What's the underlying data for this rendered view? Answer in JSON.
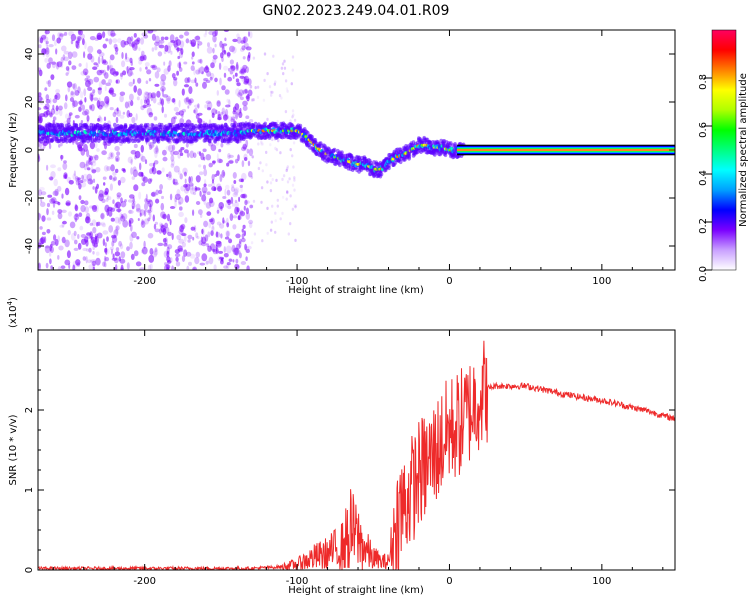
{
  "title": "GN02.2023.249.04.01.R09",
  "chart_data": [
    {
      "type": "heatmap",
      "name": "spectrogram",
      "xlabel": "Height of straight line (km)",
      "ylabel": "Frequency (Hz)",
      "xlim": [
        -270,
        148
      ],
      "ylim": [
        -50,
        50
      ],
      "xticks": [
        -200,
        -100,
        0,
        100
      ],
      "yticks": [
        -40,
        -20,
        0,
        20,
        40
      ],
      "colorbar": {
        "label": "Normalized spectral amplitude",
        "range": [
          0,
          1
        ],
        "ticks": [
          "0.0",
          "0.2",
          "0.4",
          "0.6",
          "0.8"
        ],
        "colors": [
          "#ffffff",
          "#c9a0ff",
          "#7a00ff",
          "#0000ff",
          "#00a0ff",
          "#00ffff",
          "#00ff80",
          "#00ff00",
          "#b0ff00",
          "#ffff00",
          "#ff8000",
          "#ff0000",
          "#ff0060"
        ]
      },
      "ridge_x": [
        -270,
        -250,
        -230,
        -200,
        -170,
        -140,
        -130,
        -120,
        -110,
        -100,
        -95,
        -90,
        -85,
        -80,
        -75,
        -70,
        -65,
        -60,
        -55,
        -50,
        -45,
        -40,
        -35,
        -30,
        -25,
        -20,
        -15,
        -10,
        -5,
        0,
        5,
        10,
        148
      ],
      "ridge_y": [
        7,
        7,
        7,
        7,
        7,
        7,
        8,
        8,
        8,
        8,
        6,
        3,
        0,
        -2,
        -3,
        -4,
        -5,
        -6,
        -6,
        -8,
        -8,
        -5,
        -3,
        -2,
        0,
        2,
        2,
        1,
        1,
        0,
        0,
        0,
        0
      ],
      "noise_region_x": [
        -270,
        -130
      ],
      "noise_color": "#7a00ff"
    },
    {
      "type": "line",
      "name": "snr",
      "xlabel": "Height of straight line (km)",
      "ylabel": "SNR (10 * v/v)",
      "y_multiplier": "(x10",
      "y_multiplier_exp": "4",
      "y_multiplier_close": ")",
      "xlim": [
        -270,
        148
      ],
      "ylim": [
        0,
        3
      ],
      "xticks": [
        -200,
        -100,
        0,
        100
      ],
      "yticks": [
        0,
        1,
        2,
        3
      ],
      "color": "#ee2a2a",
      "series": [
        {
          "x": [
            -270,
            -130,
            -110,
            -100,
            -90,
            -80,
            -70,
            -65,
            -60,
            -55,
            -50,
            -45,
            -40,
            -35,
            -30,
            -25,
            -20,
            -15,
            -10,
            -5,
            0,
            5,
            10,
            15,
            20,
            25,
            30,
            40,
            50,
            60,
            70,
            80,
            90,
            100,
            110,
            120,
            130,
            140,
            148
          ],
          "values": [
            0.02,
            0.02,
            0.04,
            0.07,
            0.15,
            0.2,
            0.3,
            0.5,
            0.4,
            0.25,
            0.15,
            0.1,
            0.1,
            0.6,
            0.8,
            1.0,
            1.2,
            1.3,
            1.45,
            1.6,
            1.75,
            1.8,
            1.9,
            2.05,
            2.2,
            2.27,
            2.3,
            2.3,
            2.3,
            2.26,
            2.22,
            2.18,
            2.15,
            2.12,
            2.08,
            2.03,
            1.99,
            1.93,
            1.89
          ]
        }
      ]
    }
  ]
}
